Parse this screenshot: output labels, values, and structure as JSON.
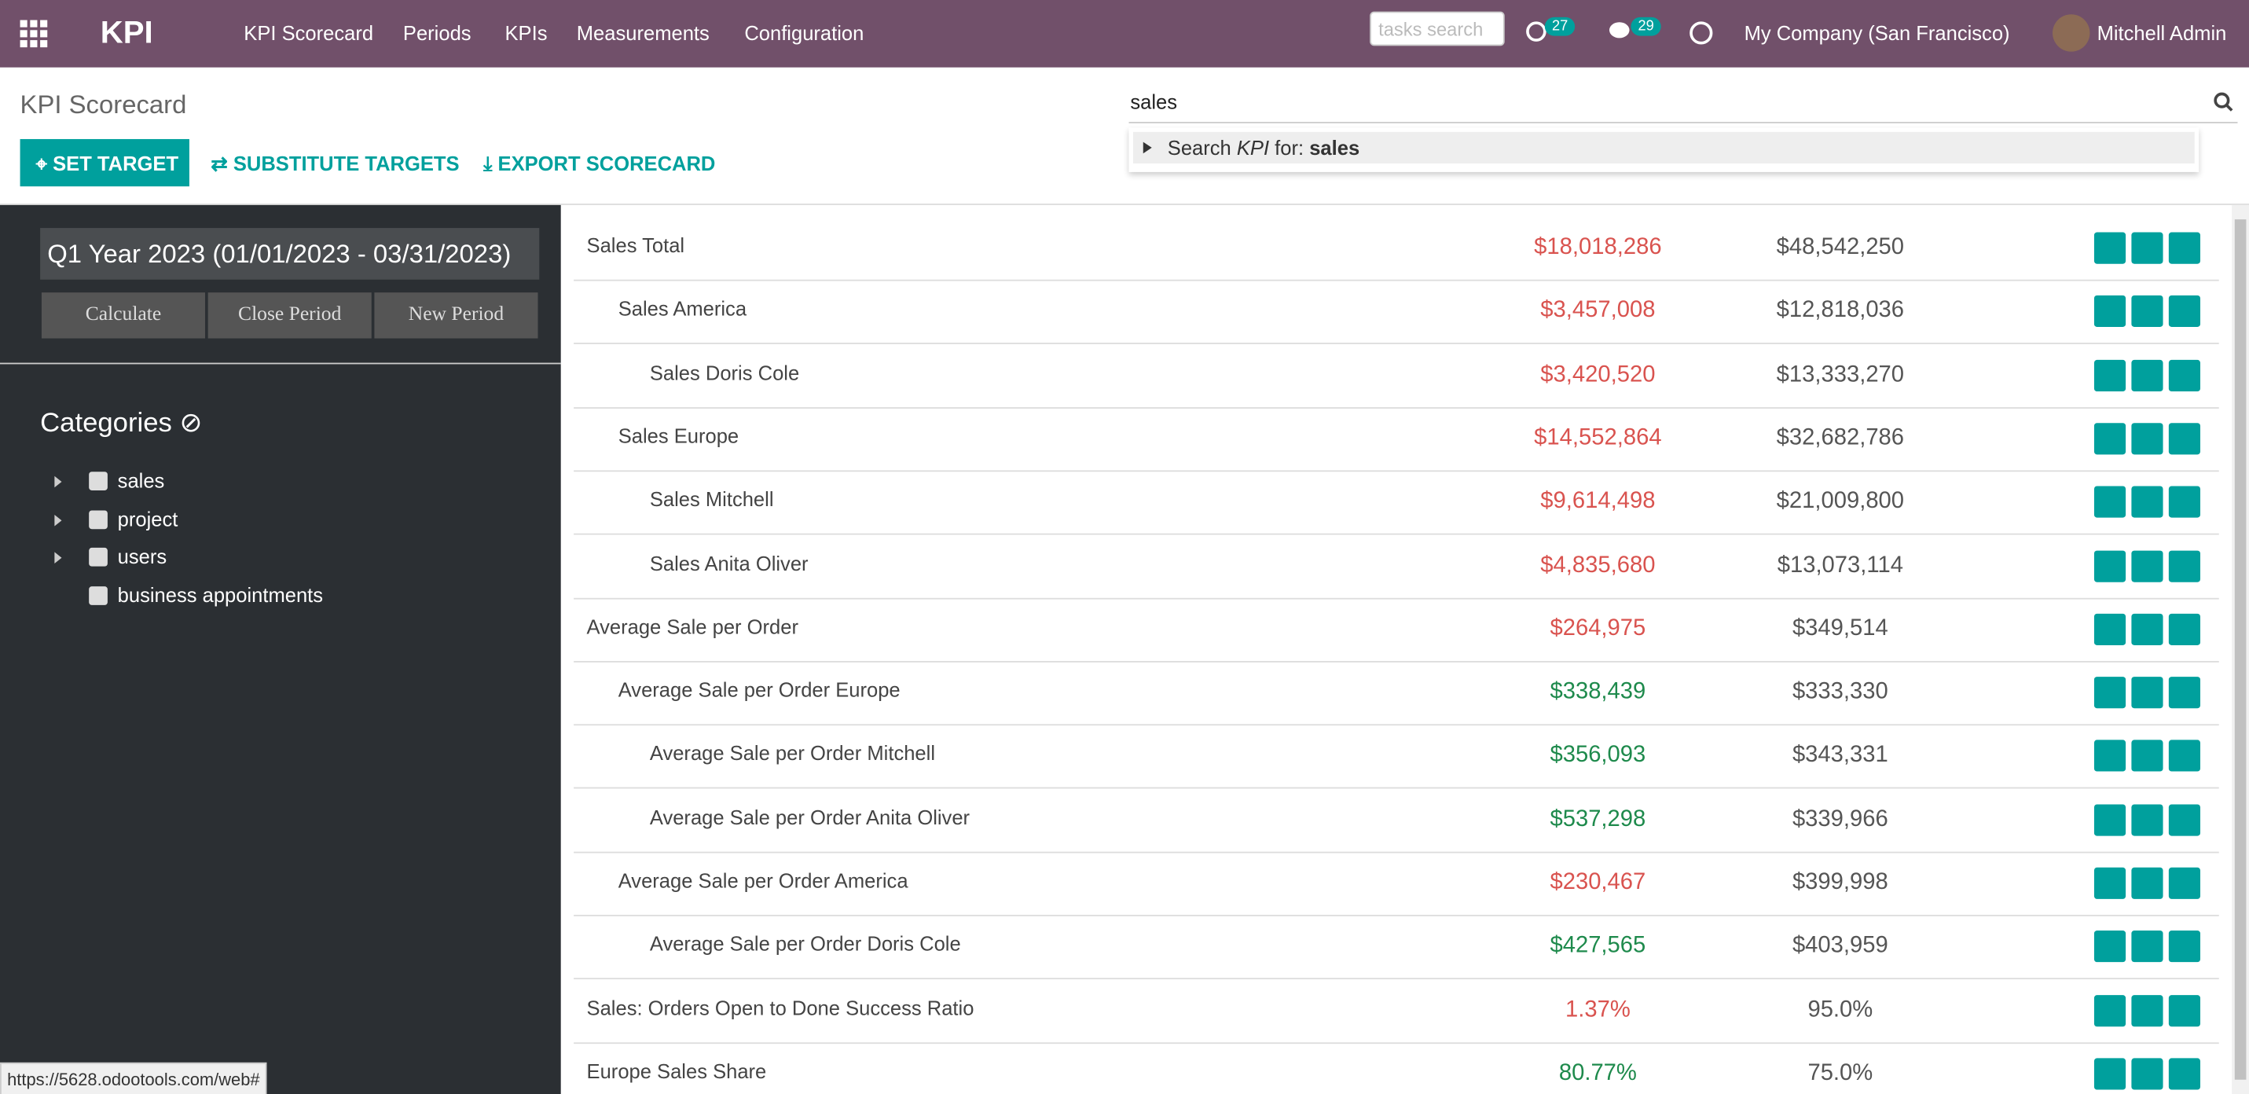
{
  "navbar": {
    "brand": "KPI",
    "menu": [
      "KPI Scorecard",
      "Periods",
      "KPIs",
      "Measurements",
      "Configuration"
    ],
    "search_placeholder": "tasks search",
    "activity_count": 27,
    "message_count": 29,
    "company": "My Company (San Francisco)",
    "user": "Mitchell Admin"
  },
  "control_panel": {
    "title": "KPI Scorecard",
    "buttons": [
      "SET TARGET",
      "SUBSTITUTE TARGETS",
      "EXPORT SCORECARD"
    ],
    "search_query": "sales",
    "suggestion": {
      "prefix": "Search",
      "model": "KPI",
      "middle": "for:",
      "term": "sales"
    }
  },
  "sidebar": {
    "period": "Q1 Year 2023 (01/01/2023 - 03/31/2023)",
    "period_buttons": [
      "Calculate",
      "Close Period",
      "New Period"
    ],
    "categories_title": "Categories",
    "categories": [
      {
        "label": "sales",
        "expandable": true
      },
      {
        "label": "project",
        "expandable": true
      },
      {
        "label": "users",
        "expandable": true
      },
      {
        "label": "business appointments",
        "expandable": false
      }
    ]
  },
  "table": {
    "rows": [
      {
        "name": "Sales Total",
        "level": 0,
        "actual": "$18,018,286",
        "target": "$48,542,250",
        "color": "#d9534f"
      },
      {
        "name": "Sales America",
        "level": 1,
        "actual": "$3,457,008",
        "target": "$12,818,036",
        "color": "#d9534f"
      },
      {
        "name": "Sales Doris Cole",
        "level": 2,
        "actual": "$3,420,520",
        "target": "$13,333,270",
        "color": "#d9534f"
      },
      {
        "name": "Sales Europe",
        "level": 1,
        "actual": "$14,552,864",
        "target": "$32,682,786",
        "color": "#d9534f"
      },
      {
        "name": "Sales Mitchell",
        "level": 2,
        "actual": "$9,614,498",
        "target": "$21,009,800",
        "color": "#d9534f"
      },
      {
        "name": "Sales Anita Oliver",
        "level": 2,
        "actual": "$4,835,680",
        "target": "$13,073,114",
        "color": "#d9534f"
      },
      {
        "name": "Average Sale per Order",
        "level": 0,
        "actual": "$264,975",
        "target": "$349,514",
        "color": "#d9534f"
      },
      {
        "name": "Average Sale per Order Europe",
        "level": 1,
        "actual": "$338,439",
        "target": "$333,330",
        "color": "#1e8a4c"
      },
      {
        "name": "Average Sale per Order Mitchell",
        "level": 2,
        "actual": "$356,093",
        "target": "$343,331",
        "color": "#1e8a4c"
      },
      {
        "name": "Average Sale per Order Anita Oliver",
        "level": 2,
        "actual": "$537,298",
        "target": "$339,966",
        "color": "#1e8a4c"
      },
      {
        "name": "Average Sale per Order America",
        "level": 1,
        "actual": "$230,467",
        "target": "$399,998",
        "color": "#d9534f"
      },
      {
        "name": "Average Sale per Order Doris Cole",
        "level": 2,
        "actual": "$427,565",
        "target": "$403,959",
        "color": "#1e8a4c"
      },
      {
        "name": "Sales: Orders Open to Done Success Ratio",
        "level": 0,
        "actual": "1.37%",
        "target": "95.0%",
        "color": "#d9534f"
      },
      {
        "name": "Europe Sales Share",
        "level": 0,
        "actual": "80.77%",
        "target": "75.0%",
        "color": "#1e8a4c"
      }
    ]
  },
  "status_url": "https://5628.odootools.com/web#"
}
